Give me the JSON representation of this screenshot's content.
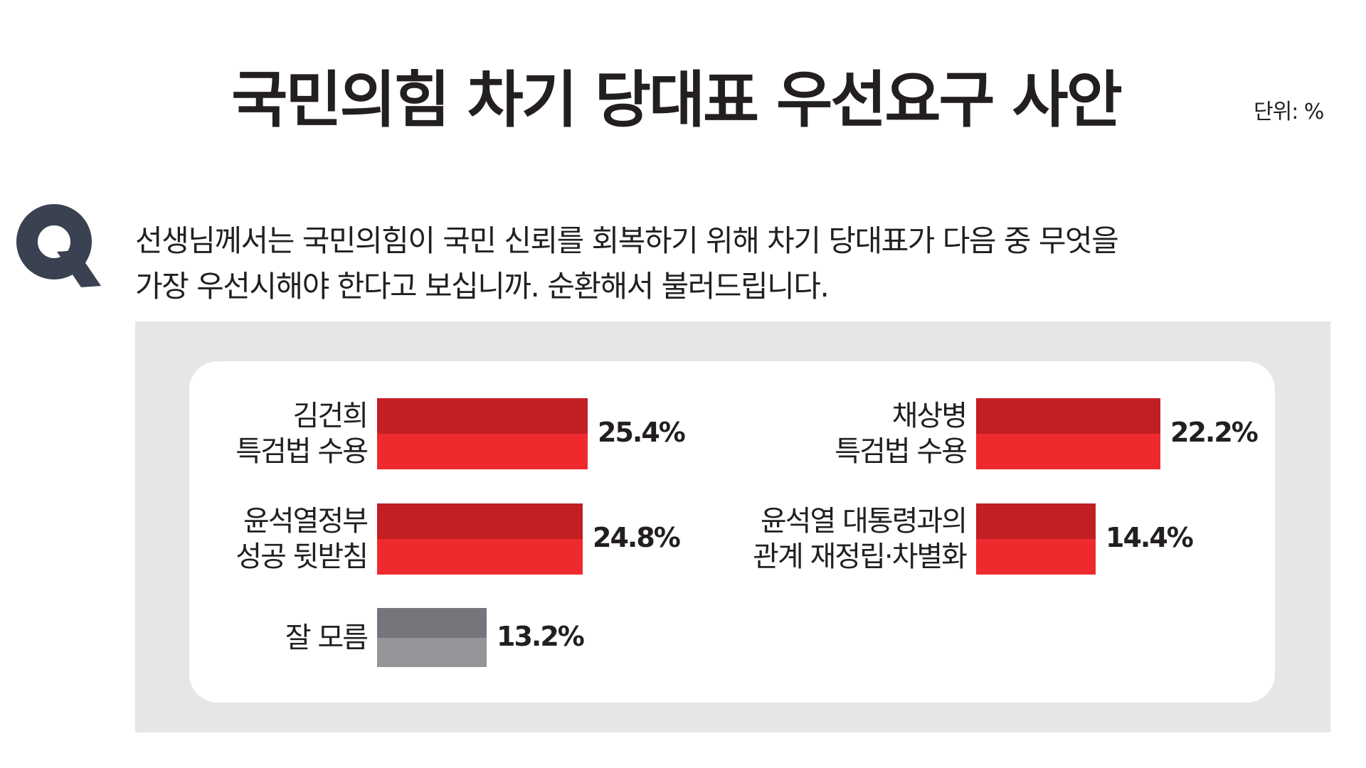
{
  "header": {
    "title": "국민의힘 차기 당대표 우선요구 사안",
    "unit": "단위: %"
  },
  "question": {
    "icon": "q-icon",
    "line1": "선생님께서는 국민의힘이 국민 신뢰를 회복하기 위해 차기 당대표가 다음 중 무엇을",
    "line2": "가장 우선시해야 한다고 보십니까. 순환해서 불러드립니다."
  },
  "colors": {
    "red_dark": "#c21f24",
    "red_light": "#ee2a2e",
    "gray_dark": "#76757b",
    "gray_light": "#959499",
    "panel_bg": "#e6e6e6",
    "card_bg": "#ffffff",
    "q_icon": "#3a4150"
  },
  "chart_data": {
    "type": "bar",
    "title": "국민의힘 차기 당대표 우선요구 사안",
    "unit": "단위: %",
    "categories": [
      [
        "김건희",
        "특검법 수용"
      ],
      [
        "윤석열정부",
        "성공 뒷받침"
      ],
      [
        "잘 모름"
      ],
      [
        "채상병",
        "특검법 수용"
      ],
      [
        "윤석열 대통령과의",
        "관계 재정립·차별화"
      ]
    ],
    "values": [
      25.4,
      24.8,
      13.2,
      22.2,
      14.4
    ],
    "value_labels": [
      "25.4%",
      "24.8%",
      "13.2%",
      "22.2%",
      "14.4%"
    ],
    "bar_colors": [
      "red",
      "red",
      "gray",
      "red",
      "red"
    ],
    "ylim": [
      0,
      100
    ]
  }
}
